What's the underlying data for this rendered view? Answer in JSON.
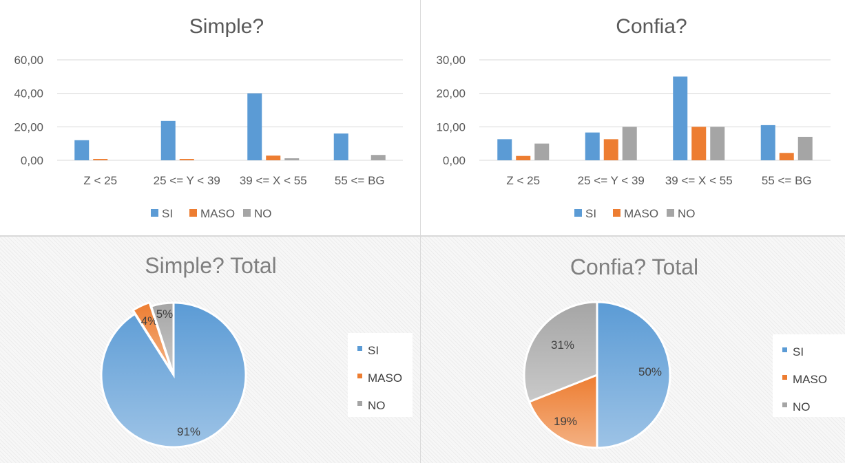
{
  "colors": {
    "SI": "#5b9bd5",
    "MASO": "#ed7d31",
    "NO": "#a5a5a5",
    "SI_light": "#9dc3e6",
    "MASO_light": "#f4b183",
    "NO_light": "#c9c9c9",
    "grid": "#d9d9d9",
    "text": "#595959"
  },
  "chart_data": [
    {
      "type": "bar",
      "title": "Simple?",
      "categories": [
        "Z < 25",
        "25 <= Y < 39",
        "39 <= X < 55",
        "55 <= BG"
      ],
      "series": [
        {
          "name": "SI",
          "values": [
            12.0,
            23.5,
            40.0,
            16.0
          ]
        },
        {
          "name": "MASO",
          "values": [
            0.8,
            0.8,
            2.8,
            0.0
          ]
        },
        {
          "name": "NO",
          "values": [
            0.0,
            0.0,
            1.2,
            3.2
          ]
        }
      ],
      "ylim": [
        0,
        60
      ],
      "yticks": [
        "0,00",
        "20,00",
        "40,00",
        "60,00"
      ],
      "ytick_values": [
        0,
        20,
        40,
        60
      ],
      "grid": true,
      "legend": "bottom"
    },
    {
      "type": "bar",
      "title": "Confia?",
      "categories": [
        "Z < 25",
        "25 <= Y < 39",
        "39 <= X < 55",
        "55 <= BG"
      ],
      "series": [
        {
          "name": "SI",
          "values": [
            6.3,
            8.3,
            25.0,
            10.5
          ]
        },
        {
          "name": "MASO",
          "values": [
            1.3,
            6.3,
            10.0,
            2.2
          ]
        },
        {
          "name": "NO",
          "values": [
            5.0,
            10.0,
            10.0,
            7.0
          ]
        }
      ],
      "ylim": [
        0,
        30
      ],
      "yticks": [
        "0,00",
        "10,00",
        "20,00",
        "30,00"
      ],
      "ytick_values": [
        0,
        10,
        20,
        30
      ],
      "grid": true,
      "legend": "bottom"
    },
    {
      "type": "pie",
      "title": "Simple? Total",
      "labels": [
        "SI",
        "MASO",
        "NO"
      ],
      "values": [
        91,
        4,
        5
      ],
      "data_labels": [
        "91%",
        "4%",
        "5%"
      ],
      "legend": "right"
    },
    {
      "type": "pie",
      "title": "Confia? Total",
      "labels": [
        "SI",
        "MASO",
        "NO"
      ],
      "values": [
        50,
        19,
        31
      ],
      "data_labels": [
        "50%",
        "19%",
        "31%"
      ],
      "legend": "right"
    }
  ]
}
